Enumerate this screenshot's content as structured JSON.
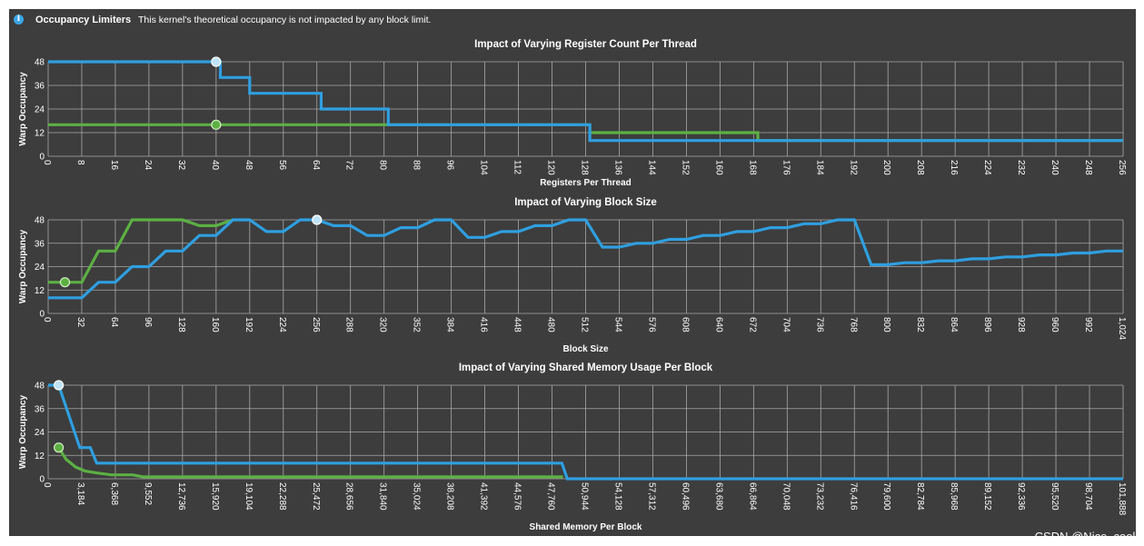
{
  "header": {
    "title": "Occupancy Limiters",
    "message": "This kernel's theoretical occupancy is not impacted by any block limit."
  },
  "watermark": "CSDN @Nice_cool.",
  "colors": {
    "background": "#3d3d3d",
    "grid": "#a9a9a9",
    "blue": "#2f9fe0",
    "green": "#5cb043"
  },
  "chart_data": [
    {
      "type": "line",
      "title": "Impact of Varying Register Count Per Thread",
      "xlabel": "Registers Per Thread",
      "ylabel": "Warp Occupancy",
      "xlim": [
        0,
        256
      ],
      "ylim": [
        0,
        48
      ],
      "grid": true,
      "xticks": [
        "0",
        "8",
        "16",
        "24",
        "32",
        "40",
        "48",
        "56",
        "64",
        "72",
        "80",
        "88",
        "96",
        "104",
        "112",
        "120",
        "128",
        "136",
        "144",
        "152",
        "160",
        "168",
        "176",
        "184",
        "192",
        "200",
        "208",
        "216",
        "224",
        "232",
        "240",
        "248",
        "256"
      ],
      "yticks": [
        "0",
        "12",
        "24",
        "36",
        "48"
      ],
      "series": [
        {
          "color": "blue",
          "step": true,
          "x": [
            0,
            40,
            41,
            48,
            65,
            81,
            129,
            256
          ],
          "y": [
            48,
            48,
            40,
            32,
            24,
            16,
            8,
            8
          ]
        },
        {
          "color": "green",
          "step": true,
          "x": [
            0,
            129,
            169,
            256
          ],
          "y": [
            16,
            12,
            8,
            8
          ]
        }
      ],
      "markers": [
        {
          "color": "blue",
          "x": 40,
          "y": 48
        },
        {
          "color": "green",
          "x": 40,
          "y": 16
        }
      ]
    },
    {
      "type": "line",
      "title": "Impact of Varying Block Size",
      "xlabel": "Block Size",
      "ylabel": "Warp Occupancy",
      "xlim": [
        0,
        1024
      ],
      "ylim": [
        0,
        48
      ],
      "grid": true,
      "xticks": [
        "0",
        "32",
        "64",
        "96",
        "128",
        "160",
        "192",
        "224",
        "256",
        "288",
        "320",
        "352",
        "384",
        "416",
        "448",
        "480",
        "512",
        "544",
        "576",
        "608",
        "640",
        "672",
        "704",
        "736",
        "768",
        "800",
        "832",
        "864",
        "896",
        "928",
        "960",
        "992",
        "1,024"
      ],
      "yticks": [
        "0",
        "12",
        "24",
        "36",
        "48"
      ],
      "series": [
        {
          "color": "blue",
          "step": false,
          "x": [
            0,
            32,
            48,
            64,
            80,
            96,
            112,
            128,
            144,
            160,
            176,
            192,
            208,
            224,
            240,
            256,
            272,
            288,
            304,
            320,
            336,
            352,
            368,
            384,
            400,
            416,
            432,
            448,
            464,
            480,
            496,
            512,
            528,
            544,
            560,
            576,
            592,
            608,
            624,
            640,
            656,
            672,
            688,
            704,
            720,
            736,
            752,
            768,
            784,
            800,
            816,
            832,
            848,
            864,
            880,
            896,
            912,
            928,
            944,
            960,
            976,
            992,
            1008,
            1024
          ],
          "y": [
            8,
            8,
            16,
            16,
            24,
            24,
            32,
            32,
            40,
            40,
            48,
            48,
            42,
            42,
            48,
            48,
            45,
            45,
            40,
            40,
            44,
            44,
            48,
            48,
            39,
            39,
            42,
            42,
            45,
            45,
            48,
            48,
            34,
            34,
            36,
            36,
            38,
            38,
            40,
            40,
            42,
            42,
            44,
            44,
            46,
            46,
            48,
            48,
            25,
            25,
            26,
            26,
            27,
            27,
            28,
            28,
            29,
            29,
            30,
            30,
            31,
            31,
            32,
            32
          ]
        },
        {
          "color": "green",
          "step": false,
          "x": [
            0,
            32,
            48,
            64,
            80,
            96,
            112,
            128,
            144,
            160,
            176
          ],
          "y": [
            16,
            16,
            32,
            32,
            48,
            48,
            48,
            48,
            45,
            45,
            48
          ]
        }
      ],
      "markers": [
        {
          "color": "blue",
          "x": 256,
          "y": 48
        },
        {
          "color": "green",
          "x": 16,
          "y": 16
        }
      ]
    },
    {
      "type": "line",
      "title": "Impact of Varying Shared Memory Usage Per Block",
      "xlabel": "Shared Memory Per Block",
      "ylabel": "Warp Occupancy",
      "xlim": [
        0,
        101888
      ],
      "ylim": [
        0,
        48
      ],
      "grid": true,
      "xticks": [
        "0",
        "3,184",
        "6,368",
        "9,552",
        "12,736",
        "15,920",
        "19,104",
        "22,288",
        "25,472",
        "28,656",
        "31,840",
        "35,024",
        "38,208",
        "41,392",
        "44,576",
        "47,760",
        "50,944",
        "54,128",
        "57,312",
        "60,496",
        "63,680",
        "66,864",
        "70,048",
        "73,232",
        "76,416",
        "79,600",
        "82,784",
        "85,968",
        "89,152",
        "92,336",
        "95,520",
        "98,704",
        "101,888"
      ],
      "yticks": [
        "0",
        "12",
        "24",
        "36",
        "48"
      ],
      "series": [
        {
          "color": "blue",
          "step": false,
          "x": [
            0,
            1000,
            3000,
            4000,
            4600,
            48700,
            49200,
            101888
          ],
          "y": [
            48,
            48,
            16,
            16,
            8,
            8,
            0,
            0
          ]
        },
        {
          "color": "green",
          "step": false,
          "x": [
            1000,
            1700,
            2600,
            3500,
            4600,
            6000,
            8000,
            9000,
            48800
          ],
          "y": [
            16,
            10,
            6,
            4,
            3,
            2,
            2,
            1,
            1
          ]
        }
      ],
      "markers": [
        {
          "color": "blue",
          "x": 1000,
          "y": 48
        },
        {
          "color": "green",
          "x": 1000,
          "y": 16
        }
      ]
    }
  ]
}
